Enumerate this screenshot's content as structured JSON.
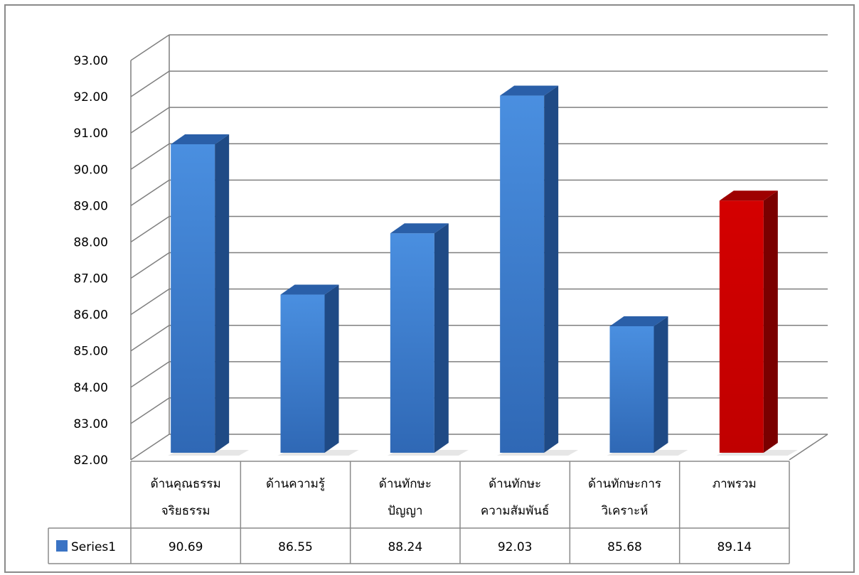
{
  "chart_data": {
    "type": "bar",
    "categories": [
      [
        "ด้านคุณธรรม",
        "จริยธรรม"
      ],
      [
        "ด้านความรู้"
      ],
      [
        "ด้านทักษะ",
        "ปัญญา"
      ],
      [
        "ด้านทักษะ",
        "ความสัมพันธ์"
      ],
      [
        "ด้านทักษะการ",
        "วิเคราะห์"
      ],
      [
        "ภาพรวม"
      ]
    ],
    "series": [
      {
        "name": "Series1",
        "values": [
          90.69,
          86.55,
          88.24,
          92.03,
          85.68,
          89.14
        ]
      }
    ],
    "value_labels": [
      "90.69",
      "86.55",
      "88.24",
      "92.03",
      "85.68",
      "89.14"
    ],
    "yticks": [
      "82.00",
      "83.00",
      "84.00",
      "85.00",
      "86.00",
      "87.00",
      "88.00",
      "89.00",
      "90.00",
      "91.00",
      "92.00",
      "93.00"
    ],
    "ylim": [
      82,
      93
    ],
    "grid": true,
    "data_table": true,
    "legend_position": "data-table-left",
    "colors": {
      "bar_front_top": "#4a8fe0",
      "bar_front_bottom": "#2f68b5",
      "bar_side": "#1f4a85",
      "bar_top": "#2a5fa8",
      "highlight_front": "#c40000",
      "highlight_side": "#7a0000",
      "highlight_top": "#9e0000",
      "legend_swatch": "#3a73c4",
      "grid": "#7f7f7f"
    },
    "highlight_index": 5
  }
}
